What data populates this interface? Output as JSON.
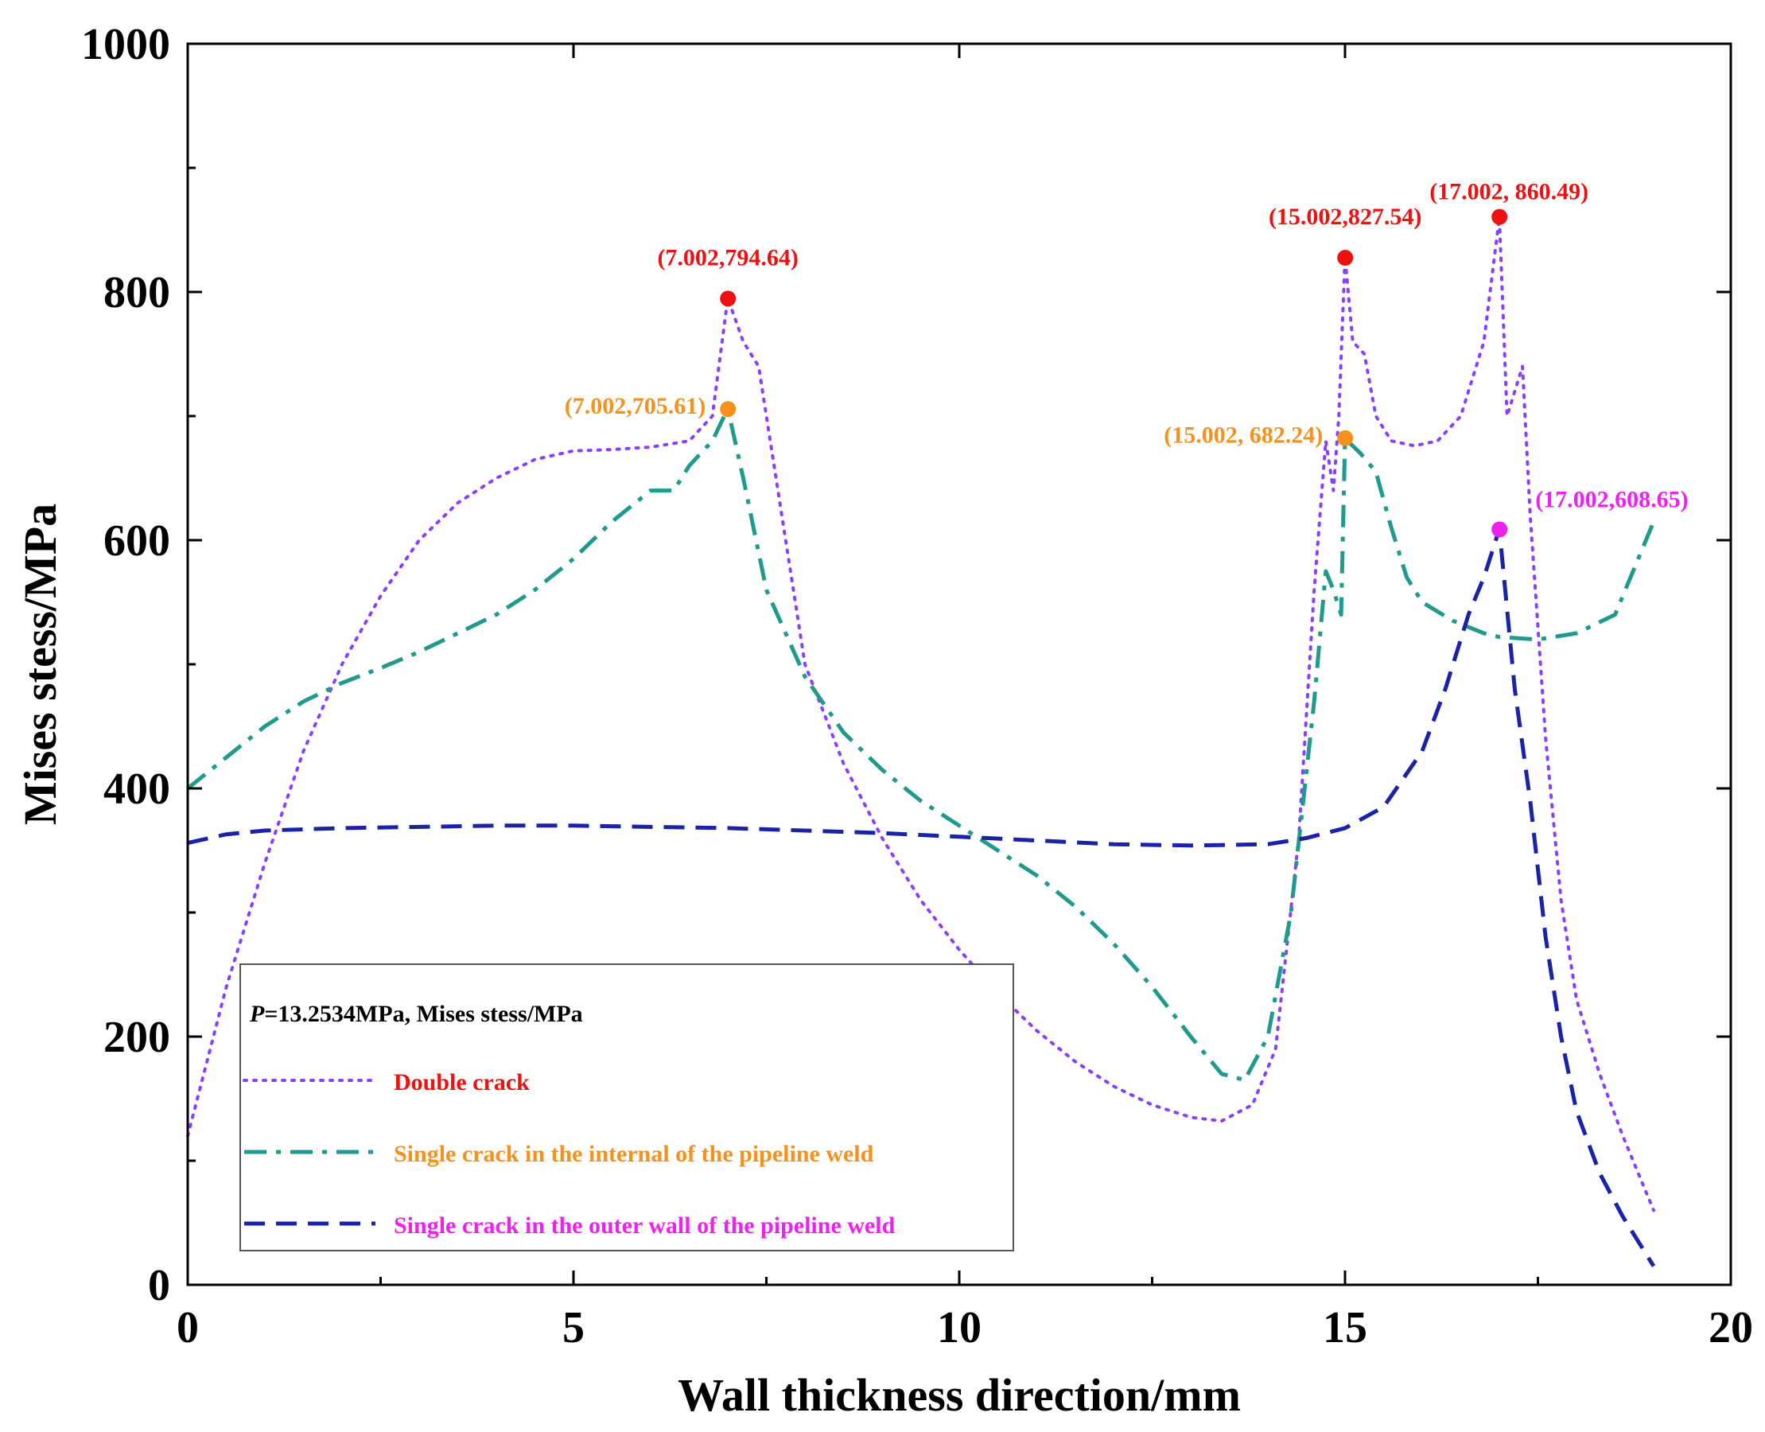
{
  "chart_data": {
    "type": "line",
    "title": "",
    "xlabel": "Wall thickness direction/mm",
    "ylabel": "Mises stess/MPa",
    "xlim": [
      0,
      20
    ],
    "ylim": [
      0,
      1000
    ],
    "xticks": [
      0,
      5,
      10,
      15,
      20
    ],
    "xtick_labels": [
      "0",
      "5",
      "10",
      "15",
      "20"
    ],
    "yticks": [
      0,
      200,
      400,
      600,
      800,
      1000
    ],
    "ytick_labels": [
      "0",
      "200",
      "400",
      "600",
      "800",
      "1000"
    ],
    "grid": false,
    "legend_title": "P=13.2534MPa, Mises stess/MPa",
    "legend_title_italic": "P",
    "legend_title_rest": "=13.2534MPa, Mises stess/MPa",
    "legend_position": "lower-left",
    "series": [
      {
        "name": "Double crack",
        "color": "#8a3ffc",
        "text_color": "#ee1111",
        "style": "dotted",
        "x": [
          0,
          0.5,
          1,
          1.5,
          2,
          2.5,
          3,
          3.5,
          4,
          4.5,
          5,
          5.5,
          6,
          6.5,
          6.8,
          7.0,
          7.2,
          7.4,
          7.6,
          8,
          8.5,
          9,
          9.5,
          10,
          10.5,
          11,
          11.5,
          12,
          12.5,
          13,
          13.4,
          13.8,
          14.1,
          14.4,
          14.6,
          14.75,
          14.85,
          14.92,
          15.0,
          15.1,
          15.25,
          15.4,
          15.6,
          15.9,
          16.2,
          16.5,
          16.8,
          17.0,
          17.1,
          17.2,
          17.3,
          17.4,
          17.6,
          17.8,
          18.0,
          18.3,
          18.6,
          19.0
        ],
        "y": [
          120,
          240,
          340,
          430,
          500,
          555,
          600,
          630,
          650,
          665,
          672,
          673,
          675,
          680,
          700,
          795,
          760,
          740,
          660,
          500,
          420,
          360,
          310,
          270,
          235,
          205,
          180,
          160,
          145,
          135,
          132,
          145,
          190,
          360,
          560,
          680,
          640,
          700,
          828,
          760,
          750,
          700,
          680,
          676,
          680,
          700,
          760,
          860,
          700,
          720,
          740,
          620,
          440,
          310,
          230,
          170,
          120,
          60
        ]
      },
      {
        "name": "Single crack in the internal of the pipeline weld",
        "color": "#1f9a8c",
        "text_color": "#f5921e",
        "style": "dashdot",
        "x": [
          0,
          0.5,
          1,
          1.5,
          2,
          2.5,
          3,
          3.5,
          4,
          4.5,
          5,
          5.5,
          6,
          6.3,
          6.5,
          6.8,
          7.0,
          7.2,
          7.5,
          8,
          8.5,
          9,
          9.5,
          10,
          10.5,
          11,
          11.5,
          12,
          12.5,
          13,
          13.4,
          13.7,
          14.0,
          14.3,
          14.6,
          14.75,
          14.85,
          14.95,
          15.0,
          15.2,
          15.4,
          15.6,
          15.8,
          16.0,
          16.4,
          16.8,
          17.0,
          17.5,
          18.0,
          18.5,
          19.0
        ],
        "y": [
          400,
          425,
          450,
          470,
          485,
          497,
          510,
          525,
          540,
          560,
          585,
          615,
          640,
          640,
          660,
          680,
          706,
          650,
          560,
          490,
          445,
          415,
          390,
          370,
          350,
          330,
          305,
          275,
          240,
          200,
          170,
          165,
          200,
          300,
          470,
          575,
          560,
          540,
          682,
          670,
          655,
          610,
          570,
          550,
          535,
          525,
          522,
          520,
          525,
          540,
          615
        ]
      },
      {
        "name": "Single crack in the outer wall of the pipeline weld",
        "color": "#1a22a8",
        "text_color": "#ee22ee",
        "style": "dashed",
        "x": [
          0,
          0.5,
          1,
          2,
          3,
          4,
          5,
          6,
          7,
          8,
          9,
          10,
          11,
          12,
          13,
          14,
          14.5,
          15,
          15.5,
          16,
          16.3,
          16.6,
          16.8,
          17.0,
          17.2,
          17.4,
          17.6,
          17.8,
          18.0,
          18.3,
          18.6,
          19.0
        ],
        "y": [
          356,
          363,
          366,
          368,
          369,
          370,
          370,
          369,
          368,
          366,
          364,
          361,
          358,
          355,
          354,
          355,
          360,
          368,
          385,
          430,
          480,
          540,
          570,
          609,
          480,
          390,
          280,
          200,
          140,
          90,
          55,
          15
        ]
      }
    ],
    "annotations": [
      {
        "label": "(7.002,794.64)",
        "x": 7.002,
        "y": 794.64,
        "series": 0
      },
      {
        "label": "(15.002,827.54)",
        "x": 15.002,
        "y": 827.54,
        "series": 0
      },
      {
        "label": "(17.002, 860.49)",
        "x": 17.002,
        "y": 860.49,
        "series": 0
      },
      {
        "label": "(7.002,705.61)",
        "x": 7.002,
        "y": 705.61,
        "series": 1
      },
      {
        "label": "(15.002, 682.24)",
        "x": 15.002,
        "y": 682.24,
        "series": 1
      },
      {
        "label": "(17.002,608.65)",
        "x": 17.002,
        "y": 608.65,
        "series": 2
      }
    ]
  }
}
